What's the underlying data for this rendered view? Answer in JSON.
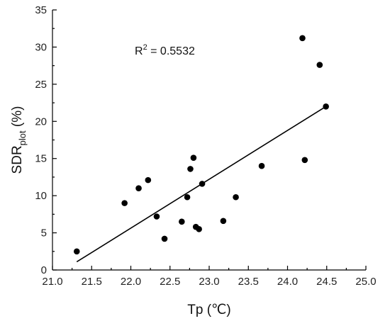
{
  "chart_data": {
    "type": "scatter",
    "xlabel": "Tp (℃)",
    "ylabel_main": "SDR",
    "ylabel_sub": "plot",
    "ylabel_unit": " (%)",
    "xlim": [
      21.0,
      25.0
    ],
    "ylim": [
      0,
      35
    ],
    "xticks": [
      21.0,
      21.5,
      22.0,
      22.5,
      23.0,
      23.5,
      24.0,
      24.5,
      25.0
    ],
    "xtick_labels": [
      "21.0",
      "21.5",
      "22.0",
      "22.5",
      "23.0",
      "23.5",
      "24.0",
      "24.5",
      "25.0"
    ],
    "yticks": [
      0,
      5,
      10,
      15,
      20,
      25,
      30,
      35
    ],
    "ytick_labels": [
      "0",
      "5",
      "10",
      "15",
      "20",
      "25",
      "30",
      "35"
    ],
    "annotation_r2_prefix": "R",
    "annotation_r2_sup": "2",
    "annotation_r2_value": " = 0.5532",
    "grid": false,
    "points": [
      {
        "x": 21.31,
        "y": 2.5
      },
      {
        "x": 21.92,
        "y": 9.0
      },
      {
        "x": 22.1,
        "y": 11.0
      },
      {
        "x": 22.22,
        "y": 12.1
      },
      {
        "x": 22.33,
        "y": 7.2
      },
      {
        "x": 22.43,
        "y": 4.2
      },
      {
        "x": 22.65,
        "y": 6.5
      },
      {
        "x": 22.72,
        "y": 9.8
      },
      {
        "x": 22.76,
        "y": 13.6
      },
      {
        "x": 22.8,
        "y": 15.1
      },
      {
        "x": 22.83,
        "y": 5.8
      },
      {
        "x": 22.87,
        "y": 5.5
      },
      {
        "x": 22.91,
        "y": 11.6
      },
      {
        "x": 23.18,
        "y": 6.6
      },
      {
        "x": 23.34,
        "y": 9.8
      },
      {
        "x": 23.67,
        "y": 14.0
      },
      {
        "x": 24.19,
        "y": 31.2
      },
      {
        "x": 24.22,
        "y": 14.8
      },
      {
        "x": 24.41,
        "y": 27.6
      },
      {
        "x": 24.49,
        "y": 22.0
      }
    ],
    "fit_line": {
      "x": [
        21.31,
        24.49
      ],
      "y": [
        1.1,
        22.0
      ]
    }
  }
}
